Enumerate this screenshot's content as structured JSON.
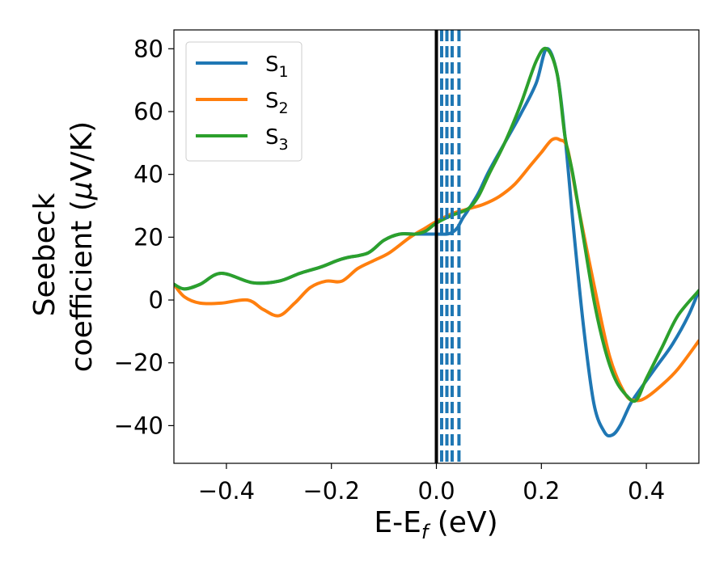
{
  "chart_data": {
    "type": "line",
    "xlabel": {
      "main": "E-E",
      "sub": "f",
      "suffix": " (eV)"
    },
    "ylabel": {
      "line1": "Seebeck",
      "line2_pre": "coefficient  (",
      "mu": "μ",
      "line2_post": "V/K)"
    },
    "xlim": [
      -0.5,
      0.5
    ],
    "ylim": [
      -52,
      86
    ],
    "xticks": [
      -0.4,
      -0.2,
      0.0,
      0.2,
      0.4
    ],
    "xtick_labels": [
      "−0.4",
      "−0.2",
      "0.0",
      "0.2",
      "0.4"
    ],
    "yticks": [
      -40,
      -20,
      0,
      20,
      40,
      60,
      80
    ],
    "ytick_labels": [
      "−40",
      "−20",
      "0",
      "20",
      "40",
      "60",
      "80"
    ],
    "fermi_line": {
      "x": 0.0,
      "color": "#000000"
    },
    "dashed_lines": {
      "x": [
        0.01,
        0.02,
        0.03,
        0.043
      ],
      "color": "#1f77b4"
    },
    "legend_position": "upper left",
    "series": [
      {
        "name": "S",
        "sub": "1",
        "color": "#1f77b4",
        "x": [
          -0.5,
          -0.48,
          -0.45,
          -0.41,
          -0.35,
          -0.3,
          -0.26,
          -0.22,
          -0.19,
          -0.17,
          -0.13,
          -0.1,
          -0.07,
          -0.04,
          -0.02,
          0.0,
          0.02,
          0.03,
          0.04,
          0.05,
          0.06,
          0.08,
          0.1,
          0.13,
          0.16,
          0.19,
          0.21,
          0.23,
          0.245,
          0.26,
          0.28,
          0.3,
          0.32,
          0.335,
          0.35,
          0.37,
          0.39,
          0.42,
          0.45,
          0.48,
          0.5
        ],
        "y": [
          5,
          3.5,
          5,
          8.5,
          5.5,
          6,
          8.5,
          10.5,
          12.5,
          13.5,
          15,
          19,
          21,
          21,
          21,
          21,
          21,
          21.5,
          23,
          26,
          28.5,
          34,
          41,
          50,
          59,
          69,
          80,
          72,
          52,
          25,
          -8,
          -33,
          -42,
          -43,
          -40,
          -33,
          -28,
          -21,
          -14,
          -5,
          3
        ]
      },
      {
        "name": "S",
        "sub": "2",
        "color": "#ff7f0e",
        "x": [
          -0.5,
          -0.48,
          -0.45,
          -0.41,
          -0.36,
          -0.33,
          -0.3,
          -0.27,
          -0.24,
          -0.21,
          -0.18,
          -0.15,
          -0.12,
          -0.09,
          -0.05,
          -0.02,
          0.0,
          0.03,
          0.06,
          0.09,
          0.12,
          0.15,
          0.18,
          0.2,
          0.22,
          0.235,
          0.25,
          0.27,
          0.3,
          0.33,
          0.36,
          0.38,
          0.4,
          0.43,
          0.46,
          0.5
        ],
        "y": [
          5,
          1,
          -1,
          -1,
          0,
          -3,
          -5,
          -1,
          4,
          6,
          6,
          10,
          12.5,
          15,
          20,
          23,
          25,
          27.5,
          29,
          30.5,
          33,
          37,
          43,
          47,
          51,
          51,
          48,
          30,
          5,
          -18,
          -30,
          -32,
          -31,
          -27,
          -22,
          -13
        ]
      },
      {
        "name": "S",
        "sub": "3",
        "color": "#2ca02c",
        "x": [
          -0.5,
          -0.48,
          -0.45,
          -0.41,
          -0.35,
          -0.3,
          -0.26,
          -0.22,
          -0.19,
          -0.17,
          -0.13,
          -0.1,
          -0.07,
          -0.04,
          -0.02,
          0.0,
          0.03,
          0.06,
          0.08,
          0.1,
          0.13,
          0.16,
          0.19,
          0.21,
          0.23,
          0.245,
          0.26,
          0.28,
          0.3,
          0.32,
          0.34,
          0.36,
          0.38,
          0.4,
          0.43,
          0.46,
          0.5
        ],
        "y": [
          5,
          3.5,
          5,
          8.5,
          5.5,
          6,
          8.5,
          10.5,
          12.5,
          13.5,
          15,
          19,
          21,
          21,
          22,
          24.5,
          27,
          29,
          33,
          40,
          50,
          62,
          76,
          80,
          72,
          52,
          40,
          20,
          0,
          -15,
          -25,
          -30,
          -32,
          -25,
          -15,
          -5,
          3
        ]
      }
    ]
  }
}
